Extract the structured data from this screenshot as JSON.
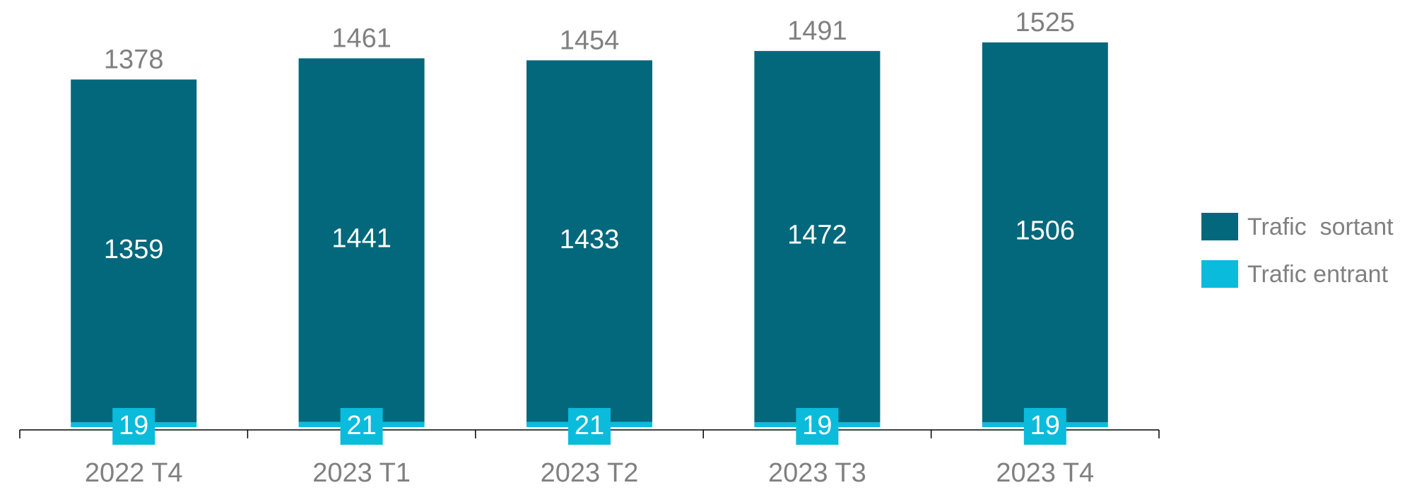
{
  "chart_data": {
    "type": "stacked-bar",
    "categories": [
      "2022 T4",
      "2023 T1",
      "2023 T2",
      "2023 T3",
      "2023 T4"
    ],
    "series": [
      {
        "name": "Trafic  sortant",
        "color": "#03687b",
        "values": [
          1359,
          1441,
          1433,
          1472,
          1506
        ]
      },
      {
        "name": "Trafic entrant",
        "color": "#0abbdc",
        "values": [
          19,
          21,
          21,
          19,
          19
        ]
      }
    ],
    "totals": [
      1378,
      1461,
      1454,
      1491,
      1525
    ],
    "legend": "right"
  }
}
